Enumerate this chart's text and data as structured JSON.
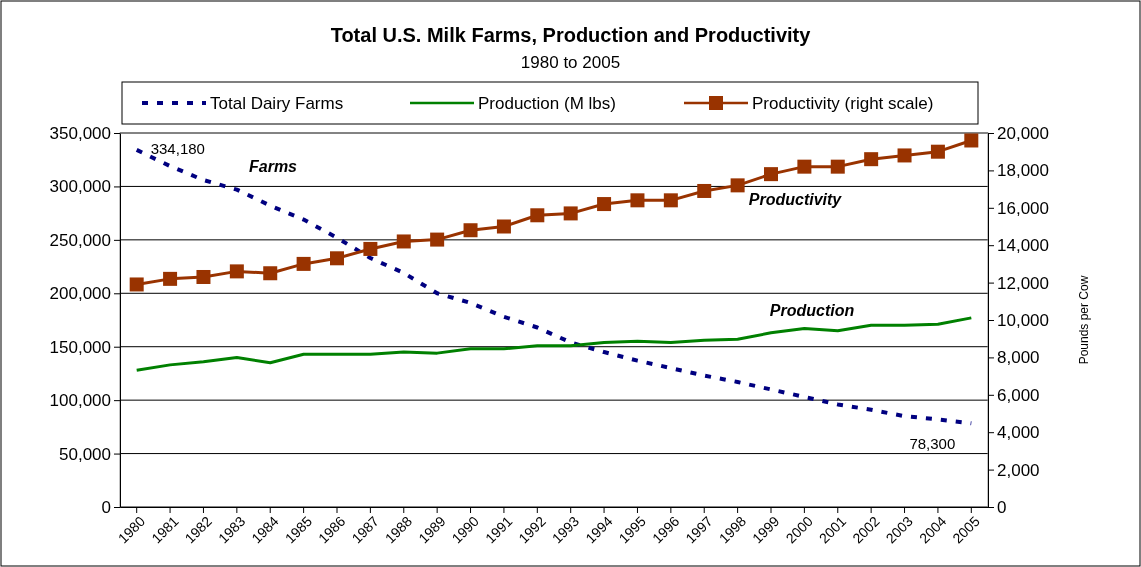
{
  "chart_data": {
    "type": "line",
    "title": "Total U.S. Milk Farms, Production and Productivity",
    "subtitle": "1980 to 2005",
    "y2label": "Pounds per Cow",
    "categories": [
      "1980",
      "1981",
      "1982",
      "1983",
      "1984",
      "1985",
      "1986",
      "1987",
      "1988",
      "1989",
      "1990",
      "1991",
      "1992",
      "1993",
      "1994",
      "1995",
      "1996",
      "1997",
      "1998",
      "1999",
      "2000",
      "2001",
      "2002",
      "2003",
      "2004",
      "2005"
    ],
    "series": [
      {
        "name": "Total Dairy Farms",
        "color": "#000080",
        "line_style": "dashed",
        "marker": "none",
        "values": [
          334180,
          319000,
          306000,
          297000,
          282000,
          269000,
          252000,
          233000,
          219000,
          200000,
          191000,
          178000,
          168000,
          154000,
          145000,
          137000,
          130000,
          123000,
          117000,
          110000,
          103000,
          96000,
          91000,
          85000,
          82000,
          78300
        ],
        "value_labels": [
          "334,180",
          null,
          null,
          null,
          null,
          null,
          null,
          null,
          null,
          null,
          null,
          null,
          null,
          null,
          null,
          null,
          null,
          null,
          null,
          null,
          null,
          null,
          null,
          null,
          null,
          "78,300"
        ]
      },
      {
        "name": "Production (M lbs)",
        "color": "#008000",
        "line_style": "solid",
        "marker": "none",
        "values": [
          128000,
          133000,
          136000,
          140000,
          135000,
          143000,
          143000,
          143000,
          145000,
          144000,
          148000,
          148000,
          151000,
          151000,
          154000,
          155000,
          154000,
          156000,
          157000,
          163000,
          167000,
          165000,
          170000,
          170000,
          171000,
          177000
        ]
      },
      {
        "name": "Productivity (right scale)",
        "color": "#993300",
        "line_style": "solid",
        "marker": "square",
        "axis": "y2",
        "values": [
          11900,
          12200,
          12300,
          12600,
          12500,
          13000,
          13300,
          13800,
          14200,
          14300,
          14800,
          15000,
          15600,
          15700,
          16200,
          16400,
          16400,
          16900,
          17200,
          17800,
          18200,
          18200,
          18600,
          18800,
          19000,
          19600
        ]
      }
    ],
    "ylim": [
      0,
      350000
    ],
    "yticks": [
      {
        "value": 0,
        "label": "0"
      },
      {
        "value": 50000,
        "label": "50,000"
      },
      {
        "value": 100000,
        "label": "100,000"
      },
      {
        "value": 150000,
        "label": "150,000"
      },
      {
        "value": 200000,
        "label": "200,000"
      },
      {
        "value": 250000,
        "label": "250,000"
      },
      {
        "value": 300000,
        "label": "300,000"
      },
      {
        "value": 350000,
        "label": "350,000"
      }
    ],
    "y2lim": [
      0,
      20000
    ],
    "y2ticks": [
      {
        "value": 0,
        "label": "0"
      },
      {
        "value": 2000,
        "label": "2,000"
      },
      {
        "value": 4000,
        "label": "4,000"
      },
      {
        "value": 6000,
        "label": "6,000"
      },
      {
        "value": 8000,
        "label": "8,000"
      },
      {
        "value": 10000,
        "label": "10,000"
      },
      {
        "value": 12000,
        "label": "12,000"
      },
      {
        "value": 14000,
        "label": "14,000"
      },
      {
        "value": 16000,
        "label": "16,000"
      },
      {
        "value": 18000,
        "label": "18,000"
      },
      {
        "value": 20000,
        "label": "20,000"
      }
    ],
    "grid": "y",
    "legend": "top",
    "annotations": [
      "Farms",
      "Productivity",
      "Production"
    ]
  }
}
